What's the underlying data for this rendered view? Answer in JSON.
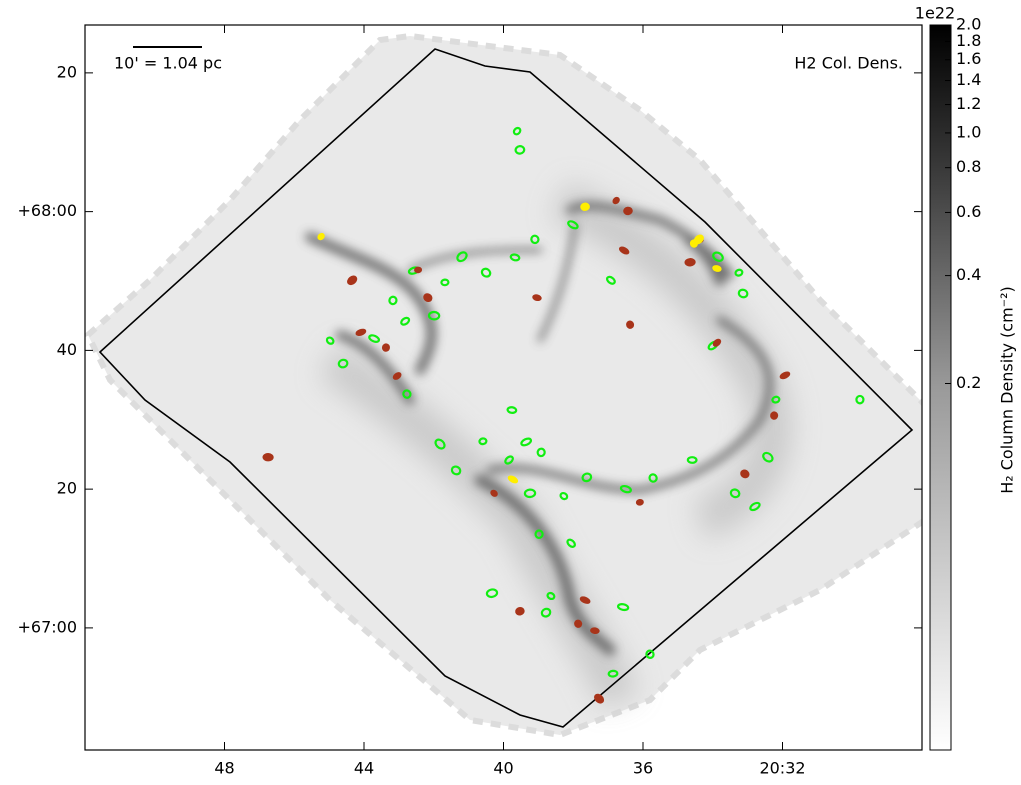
{
  "chart_data": {
    "type": "scatter",
    "title": "H2 Col. Dens.",
    "annotations": [
      "10' = 1.04 pc"
    ],
    "xlim": [
      52,
      28
    ],
    "xticks": [
      48,
      44,
      40,
      36,
      {
        "value": 32,
        "label": "20:32"
      }
    ],
    "ylim": [
      -17.6,
      86.9
    ],
    "yticks": [
      {
        "value": 0,
        "label": "+67:00"
      },
      20,
      40,
      {
        "value": 60,
        "label": "+68:00"
      },
      {
        "value": 80,
        "label": "20"
      }
    ],
    "colorbar": {
      "label": "H₂ Column Density (cm⁻²)",
      "multiplier": "1e22",
      "log": true,
      "clim": [
        0.019,
        2.0
      ],
      "ticks": [
        {
          "value": 2,
          "label": "2.0"
        },
        1.8,
        1.6,
        1.4,
        1.2,
        {
          "value": 1,
          "label": "1.0"
        },
        0.8,
        0.6,
        0.4,
        0.2
      ]
    },
    "series": [
      {
        "color": "#11ee11",
        "x": [
          39.61,
          39.53,
          38.01,
          39.1,
          39.67,
          41.19,
          41.68,
          40.5,
          42.57,
          43.17,
          42.82,
          41.99,
          44.97,
          44.6,
          43.71,
          42.77,
          39.76,
          41.82,
          40.59,
          41.36,
          39.35,
          38.92,
          39.84,
          39.24,
          38.27,
          37.61,
          36.49,
          35.71,
          34.59,
          32.42,
          32.19,
          33.36,
          32.79,
          38.98,
          38.06,
          40.33,
          38.64,
          38.78,
          36.57,
          35.8,
          36.86,
          33.85,
          33.25,
          33.13,
          33.99,
          29.78,
          36.92
        ],
        "values": [
          71.6,
          68.9,
          58.1,
          56.0,
          53.4,
          53.5,
          49.8,
          51.2,
          51.5,
          47.2,
          44.2,
          45.0,
          41.4,
          38.1,
          41.7,
          33.7,
          31.4,
          26.5,
          26.9,
          22.7,
          26.8,
          25.3,
          24.2,
          19.4,
          19.0,
          21.7,
          20.0,
          21.6,
          24.2,
          24.6,
          32.9,
          19.4,
          17.5,
          13.5,
          12.2,
          5.0,
          4.6,
          2.2,
          3.0,
          -3.8,
          -6.6,
          53.5,
          51.2,
          48.2,
          40.7,
          32.9,
          50.1
        ]
      },
      {
        "color": "#a8341a",
        "x": [
          36.77,
          36.43,
          36.54,
          36.37,
          39.04,
          44.34,
          42.45,
          42.17,
          44.09,
          43.37,
          43.05,
          46.75,
          40.27,
          39.53,
          37.66,
          37.86,
          37.38,
          37.26,
          36.09,
          33.08,
          31.93,
          32.24,
          33.88,
          34.65,
          34.37
        ],
        "values": [
          61.6,
          60.1,
          54.4,
          43.7,
          47.6,
          50.1,
          51.6,
          47.6,
          42.6,
          40.4,
          36.3,
          24.6,
          19.4,
          2.4,
          4.0,
          0.6,
          -0.4,
          -10.2,
          18.1,
          22.2,
          36.4,
          30.6,
          41.1,
          52.7,
          56.0
        ]
      },
      {
        "color": "#ffee00",
        "x": [
          45.23,
          37.66,
          39.73,
          34.54,
          33.88,
          34.4
        ],
        "values": [
          56.4,
          60.7,
          21.4,
          55.4,
          51.8,
          56.0
        ]
      }
    ]
  }
}
